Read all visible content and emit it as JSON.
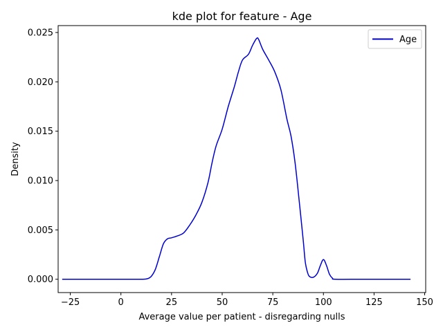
{
  "chart_data": {
    "type": "line",
    "title": "kde plot for feature -  Age",
    "xlabel": "Average value per patient - disregarding nulls",
    "ylabel": "Density",
    "xlim": [
      -31,
      150.5
    ],
    "ylim": [
      -0.00135,
      0.0257
    ],
    "x_ticks": [
      -25,
      0,
      25,
      50,
      75,
      100,
      125,
      150
    ],
    "x_tick_labels": [
      "−25",
      "0",
      "25",
      "50",
      "75",
      "100",
      "125",
      "150"
    ],
    "y_ticks": [
      0.0,
      0.005,
      0.01,
      0.015,
      0.02,
      0.025
    ],
    "y_tick_labels": [
      "0.000",
      "0.005",
      "0.010",
      "0.015",
      "0.020",
      "0.025"
    ],
    "grid": false,
    "legend": {
      "position": "top-right"
    },
    "series": [
      {
        "name": "Age",
        "color": "#0000cd",
        "points": [
          [
            -29,
            0.0
          ],
          [
            0,
            0.0
          ],
          [
            10,
            0.0
          ],
          [
            13,
            5e-05
          ],
          [
            15,
            0.0003
          ],
          [
            17,
            0.001
          ],
          [
            19,
            0.0023
          ],
          [
            21,
            0.0036
          ],
          [
            23,
            0.0041
          ],
          [
            25,
            0.0042
          ],
          [
            28,
            0.0044
          ],
          [
            31,
            0.0047
          ],
          [
            34,
            0.0055
          ],
          [
            37,
            0.0065
          ],
          [
            40,
            0.0078
          ],
          [
            43,
            0.0098
          ],
          [
            45,
            0.0118
          ],
          [
            47,
            0.0135
          ],
          [
            50,
            0.0152
          ],
          [
            53,
            0.0175
          ],
          [
            56,
            0.0195
          ],
          [
            58,
            0.021
          ],
          [
            60,
            0.0222
          ],
          [
            63,
            0.0228
          ],
          [
            65,
            0.0237
          ],
          [
            67,
            0.0244
          ],
          [
            68,
            0.0243
          ],
          [
            70,
            0.0233
          ],
          [
            73,
            0.0222
          ],
          [
            76,
            0.021
          ],
          [
            79,
            0.0192
          ],
          [
            82,
            0.0162
          ],
          [
            84,
            0.0145
          ],
          [
            86,
            0.0118
          ],
          [
            88,
            0.008
          ],
          [
            90,
            0.004
          ],
          [
            91,
            0.0018
          ],
          [
            92,
            0.0008
          ],
          [
            93,
            0.0003
          ],
          [
            95,
            0.0002
          ],
          [
            97,
            0.0006
          ],
          [
            98.5,
            0.0014
          ],
          [
            100,
            0.002
          ],
          [
            101.5,
            0.0014
          ],
          [
            103,
            0.0005
          ],
          [
            104.5,
            0.0001
          ],
          [
            106,
            0.0
          ],
          [
            120,
            0.0
          ],
          [
            143,
            0.0
          ]
        ]
      }
    ]
  }
}
